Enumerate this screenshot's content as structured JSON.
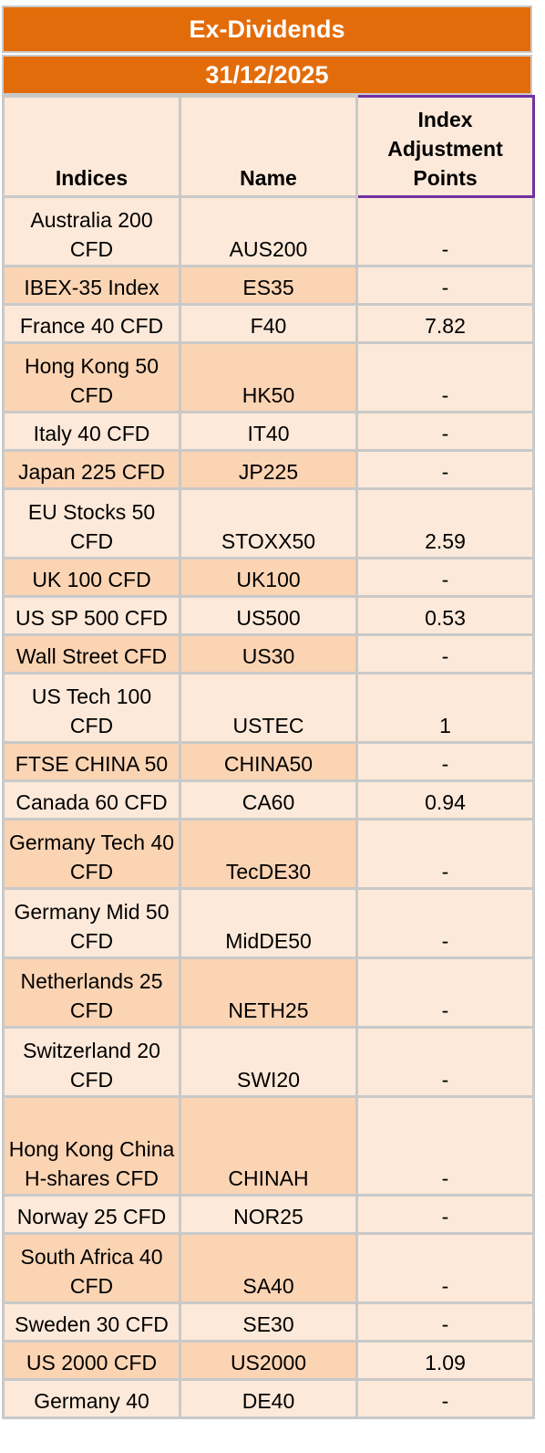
{
  "title": "Ex-Dividends",
  "date": "31/12/2025",
  "columns": [
    "Indices",
    "Name",
    "Index\nAdjustment\nPoints"
  ],
  "rows": [
    {
      "index": "Australia 200 CFD",
      "name": "AUS200",
      "points": "-",
      "h": 76
    },
    {
      "index": "IBEX-35 Index",
      "name": "ES35",
      "points": "-",
      "h": 42
    },
    {
      "index": "France 40 CFD",
      "name": "F40",
      "points": "7.82",
      "h": 42
    },
    {
      "index": "Hong Kong 50 CFD",
      "name": "HK50",
      "points": "-",
      "h": 76
    },
    {
      "index": "Italy 40 CFD",
      "name": "IT40",
      "points": "-",
      "h": 42
    },
    {
      "index": "Japan 225 CFD",
      "name": "JP225",
      "points": "-",
      "h": 42
    },
    {
      "index": "EU Stocks 50 CFD",
      "name": "STOXX50",
      "points": "2.59",
      "h": 76
    },
    {
      "index": "UK 100 CFD",
      "name": "UK100",
      "points": "-",
      "h": 42
    },
    {
      "index": "US SP 500 CFD",
      "name": "US500",
      "points": "0.53",
      "h": 42
    },
    {
      "index": "Wall Street CFD",
      "name": "US30",
      "points": "-",
      "h": 42
    },
    {
      "index": "US Tech 100 CFD",
      "name": "USTEC",
      "points": "1",
      "h": 76
    },
    {
      "index": "FTSE CHINA 50",
      "name": "CHINA50",
      "points": "-",
      "h": 42
    },
    {
      "index": "Canada 60 CFD",
      "name": "CA60",
      "points": "0.94",
      "h": 42
    },
    {
      "index": "Germany Tech 40 CFD",
      "name": "TecDE30",
      "points": "-",
      "h": 76
    },
    {
      "index": "Germany Mid 50 CFD",
      "name": "MidDE50",
      "points": "-",
      "h": 76
    },
    {
      "index": "Netherlands 25 CFD",
      "name": "NETH25",
      "points": "-",
      "h": 76
    },
    {
      "index": "Switzerland 20 CFD",
      "name": "SWI20",
      "points": "-",
      "h": 76
    },
    {
      "index": "Hong Kong China H-shares CFD",
      "name": "CHINAH",
      "points": "-",
      "h": 108
    },
    {
      "index": "Norway 25 CFD",
      "name": "NOR25",
      "points": "-",
      "h": 42
    },
    {
      "index": "South Africa 40 CFD",
      "name": "SA40",
      "points": "-",
      "h": 76
    },
    {
      "index": "Sweden 30 CFD",
      "name": "SE30",
      "points": "-",
      "h": 42
    },
    {
      "index": "US 2000 CFD",
      "name": "US2000",
      "points": "1.09",
      "h": 42
    },
    {
      "index": "Germany 40",
      "name": "DE40",
      "points": "-",
      "h": 42
    }
  ]
}
